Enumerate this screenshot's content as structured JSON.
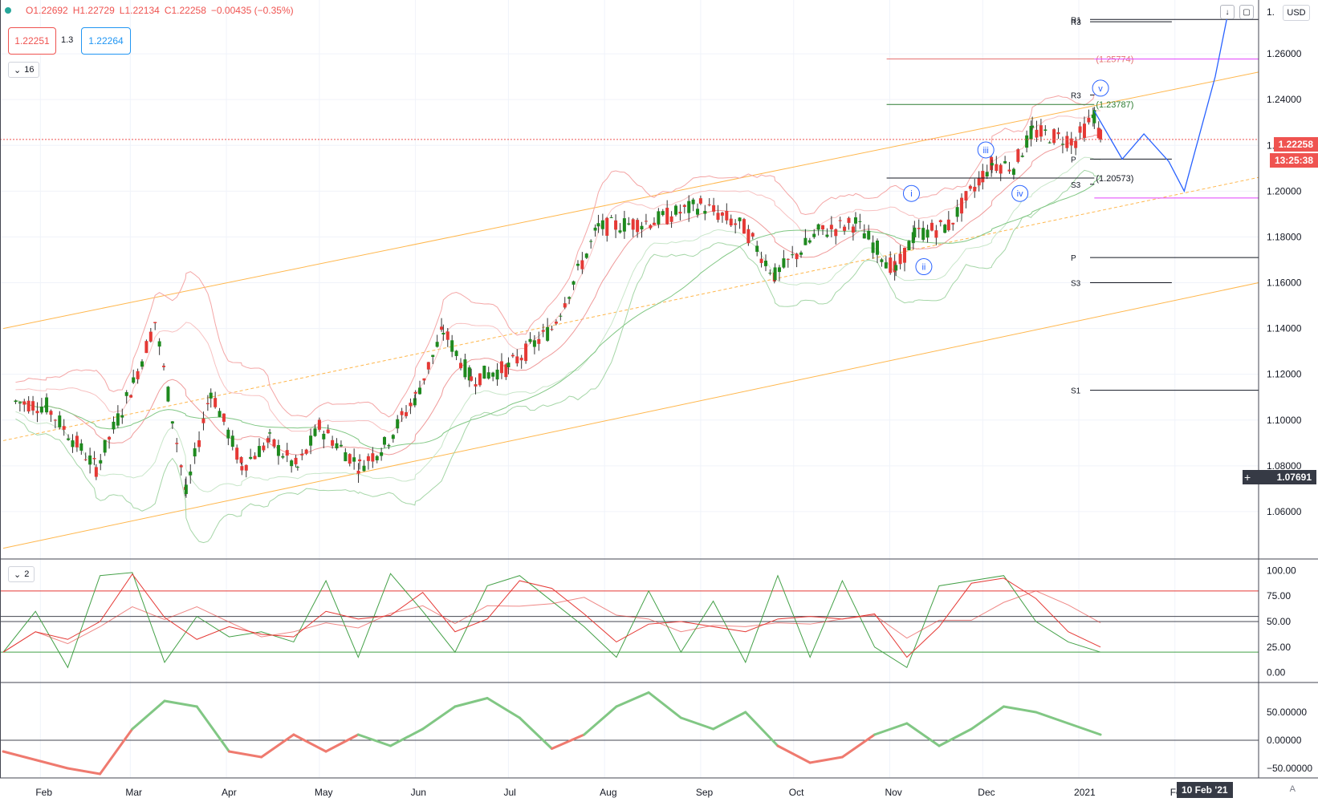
{
  "header": {
    "ohlc": {
      "open": "O1.22692",
      "high": "H1.22729",
      "low": "L1.22134",
      "close": "C1.22258",
      "change": "−0.00435 (−0.35%)"
    },
    "sell_price": "1.22251",
    "spread": "1.3",
    "buy_price": "1.22264",
    "main_legend_count": "16",
    "osc_legend_count": "2",
    "currency": "USD"
  },
  "price_axis": {
    "ticks": [
      "1.26000",
      "1.24000",
      "1.22000",
      "1.20000",
      "1.18000",
      "1.16000",
      "1.14000",
      "1.12000",
      "1.10000",
      "1.08000",
      "1.06000"
    ],
    "top_label": "1.",
    "last_price": "1.22258",
    "countdown": "13:25:38",
    "crosshair_price": "1.07691"
  },
  "time_axis": {
    "labels": [
      "Feb",
      "Mar",
      "Apr",
      "May",
      "Jun",
      "Jul",
      "Aug",
      "Sep",
      "Oct",
      "Nov",
      "Dec",
      "2021",
      "Feb"
    ],
    "hover_date": "10 Feb '21",
    "auto_label": "A"
  },
  "annotations": {
    "fib_labels": [
      "(1.25774)",
      "(1.23787)",
      "(1.20573)"
    ],
    "wave_labels": [
      "i",
      "ii",
      "iii",
      "iv",
      "v"
    ],
    "pivot_labels": [
      "R1",
      "R3",
      "R3",
      "P",
      "S3",
      "P",
      "S3",
      "S1"
    ]
  },
  "osc1_axis": {
    "ticks": [
      "100.00",
      "75.00",
      "50.00",
      "25.00",
      "0.00"
    ]
  },
  "osc2_axis": {
    "ticks": [
      "50.00000",
      "0.00000",
      "−50.00000"
    ]
  },
  "colors": {
    "up": "#26a69a",
    "up_candle": "#1e8a1e",
    "down": "#e53935",
    "fib_red": "#e57373",
    "fib_pink": "#e040fb",
    "channel": "#ffb74d",
    "projection": "#2962ff"
  },
  "chart_data": [
    {
      "type": "candlestick",
      "title": "",
      "x_range": [
        "2020-01-20",
        "2021-02-28"
      ],
      "ylim": [
        1.04,
        1.28
      ],
      "approx_closes": [
        [
          "2020-01-24",
          1.108
        ],
        [
          "2020-02-03",
          1.106
        ],
        [
          "2020-02-19",
          1.079
        ],
        [
          "2020-03-02",
          1.116
        ],
        [
          "2020-03-09",
          1.143
        ],
        [
          "2020-03-19",
          1.068
        ],
        [
          "2020-03-27",
          1.113
        ],
        [
          "2020-04-06",
          1.08
        ],
        [
          "2020-04-15",
          1.091
        ],
        [
          "2020-04-24",
          1.079
        ],
        [
          "2020-05-01",
          1.097
        ],
        [
          "2020-05-14",
          1.08
        ],
        [
          "2020-05-22",
          1.089
        ],
        [
          "2020-06-01",
          1.11
        ],
        [
          "2020-06-10",
          1.139
        ],
        [
          "2020-06-19",
          1.118
        ],
        [
          "2020-07-01",
          1.123
        ],
        [
          "2020-07-15",
          1.14
        ],
        [
          "2020-07-30",
          1.184
        ],
        [
          "2020-08-17",
          1.187
        ],
        [
          "2020-09-01",
          1.194
        ],
        [
          "2020-09-15",
          1.184
        ],
        [
          "2020-09-25",
          1.163
        ],
        [
          "2020-10-09",
          1.182
        ],
        [
          "2020-10-21",
          1.186
        ],
        [
          "2020-11-03",
          1.165
        ],
        [
          "2020-11-09",
          1.181
        ],
        [
          "2020-11-20",
          1.185
        ],
        [
          "2020-12-01",
          1.207
        ],
        [
          "2020-12-04",
          1.212
        ],
        [
          "2020-12-11",
          1.211
        ],
        [
          "2020-12-17",
          1.226
        ],
        [
          "2020-12-31",
          1.222
        ],
        [
          "2021-01-06",
          1.233
        ],
        [
          "2021-01-08",
          1.2226
        ]
      ],
      "pivot_levels": {
        "R1": 1.275,
        "R3_top": 1.274,
        "R3": 1.242,
        "P_near": 1.214,
        "S3_near": 1.203,
        "P": 1.171,
        "S3": 1.16,
        "S1": 1.113
      },
      "fib_levels": [
        1.25774,
        1.23787,
        1.20573
      ]
    },
    {
      "type": "line",
      "title": "",
      "ylim": [
        -5,
        105
      ],
      "note": "stochastic oscillator, levels 80 and 20",
      "series": [
        {
          "name": "",
          "values": [
            20,
            60,
            5,
            95,
            98,
            10,
            55,
            35,
            40,
            30,
            90,
            15,
            97,
            60,
            20,
            85,
            95,
            70,
            45,
            15,
            80,
            20,
            70,
            10,
            95,
            15,
            90,
            25,
            5,
            85,
            90,
            95,
            50,
            30,
            20
          ]
        }
      ]
    },
    {
      "type": "line",
      "title": "",
      "ylim": [
        -60,
        90
      ],
      "note": "momentum histogram-line, green above 0, red below",
      "series": [
        {
          "name": "",
          "values": [
            -20,
            -35,
            -50,
            -60,
            20,
            70,
            60,
            -20,
            -30,
            10,
            -20,
            10,
            -10,
            20,
            60,
            75,
            40,
            -15,
            10,
            60,
            85,
            40,
            20,
            50,
            -10,
            -40,
            -30,
            10,
            30,
            -10,
            20,
            60,
            50,
            30,
            10
          ]
        }
      ]
    }
  ]
}
